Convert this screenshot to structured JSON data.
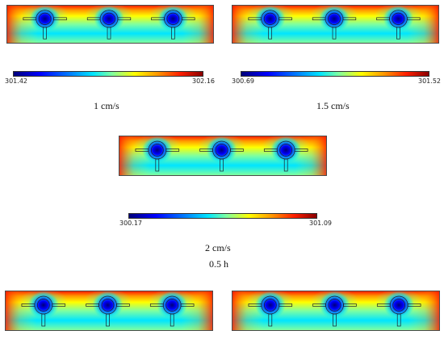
{
  "colorbars": [
    {
      "min": "301.42",
      "max": "302.16"
    },
    {
      "min": "300.69",
      "max": "301.52"
    },
    {
      "min": "300.17",
      "max": "301.09"
    }
  ],
  "captions": {
    "c1": "1 cm/s",
    "c2": "1.5 cm/s",
    "c3": "2 cm/s",
    "c4": "0.5 h"
  },
  "colormap": [
    "#00007a",
    "#0000ff",
    "#0080ff",
    "#00e5ff",
    "#7fffa0",
    "#ffff00",
    "#ff9900",
    "#ff1f00",
    "#8a0000"
  ]
}
